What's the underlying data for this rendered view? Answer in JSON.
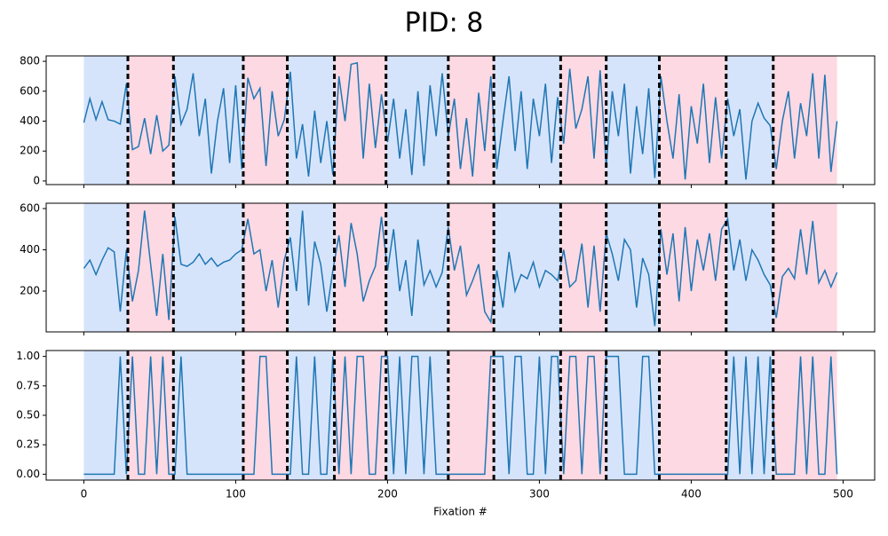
{
  "title": "PID: 8",
  "regions": {
    "bounds": [
      0,
      29,
      59,
      105,
      134,
      165,
      199,
      240,
      270,
      314,
      344,
      379,
      423,
      454,
      496
    ],
    "colors": [
      "#d6e4fb",
      "#fdd9e3"
    ]
  },
  "chart_data": [
    {
      "type": "line",
      "xlim": [
        -24.8,
        520.8
      ],
      "ylim": [
        -24,
        836
      ],
      "yticks": [
        0,
        200,
        400,
        600,
        800
      ],
      "xticks": [
        0,
        100,
        200,
        300,
        400,
        500
      ],
      "x": [
        0,
        4,
        8,
        12,
        16,
        20,
        24,
        28,
        32,
        36,
        40,
        44,
        48,
        52,
        56,
        60,
        64,
        68,
        72,
        76,
        80,
        84,
        88,
        92,
        96,
        100,
        104,
        108,
        112,
        116,
        120,
        124,
        128,
        132,
        136,
        140,
        144,
        148,
        152,
        156,
        160,
        164,
        168,
        172,
        176,
        180,
        184,
        188,
        192,
        196,
        200,
        204,
        208,
        212,
        216,
        220,
        224,
        228,
        232,
        236,
        240,
        244,
        248,
        252,
        256,
        260,
        264,
        268,
        272,
        276,
        280,
        284,
        288,
        292,
        296,
        300,
        304,
        308,
        312,
        316,
        320,
        324,
        328,
        332,
        336,
        340,
        344,
        348,
        352,
        356,
        360,
        364,
        368,
        372,
        376,
        380,
        384,
        388,
        392,
        396,
        400,
        404,
        408,
        412,
        416,
        420,
        424,
        428,
        432,
        436,
        440,
        444,
        448,
        452,
        456,
        460,
        464,
        468,
        472,
        476,
        480,
        484,
        488,
        492,
        496
      ],
      "series": [
        {
          "color": "#1f77b4",
          "values": [
            390,
            550,
            410,
            530,
            410,
            400,
            380,
            650,
            210,
            230,
            420,
            180,
            440,
            200,
            240,
            700,
            380,
            480,
            720,
            300,
            550,
            50,
            400,
            620,
            120,
            640,
            80,
            690,
            550,
            620,
            100,
            600,
            300,
            410,
            730,
            150,
            380,
            30,
            470,
            120,
            400,
            40,
            700,
            400,
            780,
            790,
            150,
            650,
            220,
            580,
            260,
            550,
            150,
            480,
            40,
            600,
            100,
            640,
            300,
            720,
            300,
            550,
            80,
            420,
            30,
            590,
            200,
            700,
            80,
            400,
            700,
            200,
            600,
            80,
            550,
            300,
            650,
            120,
            560,
            250,
            750,
            350,
            480,
            700,
            150,
            740,
            100,
            600,
            300,
            650,
            50,
            500,
            180,
            620,
            20,
            700,
            400,
            150,
            580,
            10,
            500,
            250,
            650,
            120,
            560,
            150,
            550,
            300,
            480,
            10,
            400,
            520,
            420,
            370,
            80,
            400,
            600,
            150,
            520,
            300,
            720,
            150,
            710,
            60,
            400
          ]
        }
      ]
    },
    {
      "type": "line",
      "xlim": [
        -24.8,
        520.8
      ],
      "ylim": [
        2,
        626
      ],
      "yticks": [
        200,
        400,
        600
      ],
      "xticks": [
        0,
        100,
        200,
        300,
        400,
        500
      ],
      "x": [
        0,
        4,
        8,
        12,
        16,
        20,
        24,
        28,
        32,
        36,
        40,
        44,
        48,
        52,
        56,
        60,
        64,
        68,
        72,
        76,
        80,
        84,
        88,
        92,
        96,
        100,
        104,
        108,
        112,
        116,
        120,
        124,
        128,
        132,
        136,
        140,
        144,
        148,
        152,
        156,
        160,
        164,
        168,
        172,
        176,
        180,
        184,
        188,
        192,
        196,
        200,
        204,
        208,
        212,
        216,
        220,
        224,
        228,
        232,
        236,
        240,
        244,
        248,
        252,
        256,
        260,
        264,
        268,
        272,
        276,
        280,
        284,
        288,
        292,
        296,
        300,
        304,
        308,
        312,
        316,
        320,
        324,
        328,
        332,
        336,
        340,
        344,
        348,
        352,
        356,
        360,
        364,
        368,
        372,
        376,
        380,
        384,
        388,
        392,
        396,
        400,
        404,
        408,
        412,
        416,
        420,
        424,
        428,
        432,
        436,
        440,
        444,
        448,
        452,
        456,
        460,
        464,
        468,
        472,
        476,
        480,
        484,
        488,
        492,
        496
      ],
      "series": [
        {
          "color": "#1f77b4",
          "values": [
            310,
            350,
            280,
            350,
            410,
            390,
            100,
            400,
            150,
            300,
            590,
            330,
            80,
            380,
            60,
            560,
            330,
            320,
            340,
            380,
            330,
            360,
            320,
            340,
            350,
            380,
            400,
            550,
            380,
            400,
            200,
            350,
            120,
            350,
            460,
            200,
            590,
            130,
            440,
            330,
            100,
            300,
            470,
            220,
            530,
            380,
            150,
            250,
            320,
            560,
            300,
            500,
            200,
            350,
            80,
            450,
            230,
            300,
            220,
            290,
            510,
            300,
            420,
            180,
            250,
            330,
            100,
            50,
            300,
            120,
            390,
            200,
            280,
            260,
            340,
            220,
            300,
            280,
            250,
            400,
            220,
            250,
            430,
            120,
            420,
            100,
            480,
            380,
            250,
            450,
            400,
            120,
            360,
            280,
            30,
            500,
            280,
            480,
            150,
            510,
            200,
            450,
            300,
            480,
            250,
            500,
            550,
            300,
            450,
            250,
            400,
            350,
            280,
            230,
            70,
            270,
            310,
            260,
            500,
            280,
            540,
            240,
            300,
            220,
            290
          ]
        }
      ]
    },
    {
      "type": "line",
      "xlim": [
        -24.8,
        520.8
      ],
      "ylim": [
        -0.05,
        1.05
      ],
      "yticks": [
        {
          "value": 0,
          "label": "0.00"
        },
        {
          "value": 0.25,
          "label": "0.25"
        },
        {
          "value": 0.5,
          "label": "0.50"
        },
        {
          "value": 0.75,
          "label": "0.75"
        },
        {
          "value": 1,
          "label": "1.00"
        }
      ],
      "xticks": [
        0,
        100,
        200,
        300,
        400,
        500
      ],
      "xlabel": "Fixation #",
      "x": [
        0,
        4,
        8,
        12,
        16,
        20,
        24,
        28,
        32,
        36,
        40,
        44,
        48,
        52,
        56,
        60,
        64,
        68,
        72,
        76,
        80,
        84,
        88,
        92,
        96,
        100,
        104,
        108,
        112,
        116,
        120,
        124,
        128,
        132,
        136,
        140,
        144,
        148,
        152,
        156,
        160,
        164,
        168,
        172,
        176,
        180,
        184,
        188,
        192,
        196,
        200,
        204,
        208,
        212,
        216,
        220,
        224,
        228,
        232,
        236,
        240,
        244,
        248,
        252,
        256,
        260,
        264,
        268,
        272,
        276,
        280,
        284,
        288,
        292,
        296,
        300,
        304,
        308,
        312,
        316,
        320,
        324,
        328,
        332,
        336,
        340,
        344,
        348,
        352,
        356,
        360,
        364,
        368,
        372,
        376,
        380,
        384,
        388,
        392,
        396,
        400,
        404,
        408,
        412,
        416,
        420,
        424,
        428,
        432,
        436,
        440,
        444,
        448,
        452,
        456,
        460,
        464,
        468,
        472,
        476,
        480,
        484,
        488,
        492,
        496
      ],
      "series": [
        {
          "color": "#1f77b4",
          "values": [
            0,
            0,
            0,
            0,
            0,
            0,
            1,
            0,
            1,
            0,
            0,
            1,
            0,
            1,
            0,
            0,
            1,
            0,
            0,
            0,
            0,
            0,
            0,
            0,
            0,
            0,
            0,
            0,
            0,
            1,
            1,
            0,
            0,
            0,
            0,
            1,
            0,
            0,
            1,
            0,
            0,
            1,
            0,
            1,
            0,
            1,
            1,
            0,
            0,
            1,
            1,
            0,
            1,
            0,
            1,
            1,
            0,
            1,
            0,
            0,
            0,
            0,
            0,
            0,
            0,
            0,
            0,
            1,
            1,
            1,
            0,
            1,
            1,
            0,
            0,
            1,
            0,
            1,
            1,
            0,
            1,
            1,
            0,
            1,
            1,
            0,
            1,
            1,
            1,
            0,
            0,
            0,
            1,
            1,
            0,
            0,
            0,
            0,
            0,
            0,
            0,
            0,
            0,
            0,
            0,
            0,
            0,
            1,
            0,
            1,
            0,
            1,
            0,
            1,
            0,
            0,
            0,
            0,
            1,
            0,
            1,
            0,
            0,
            1,
            0
          ]
        }
      ]
    }
  ]
}
